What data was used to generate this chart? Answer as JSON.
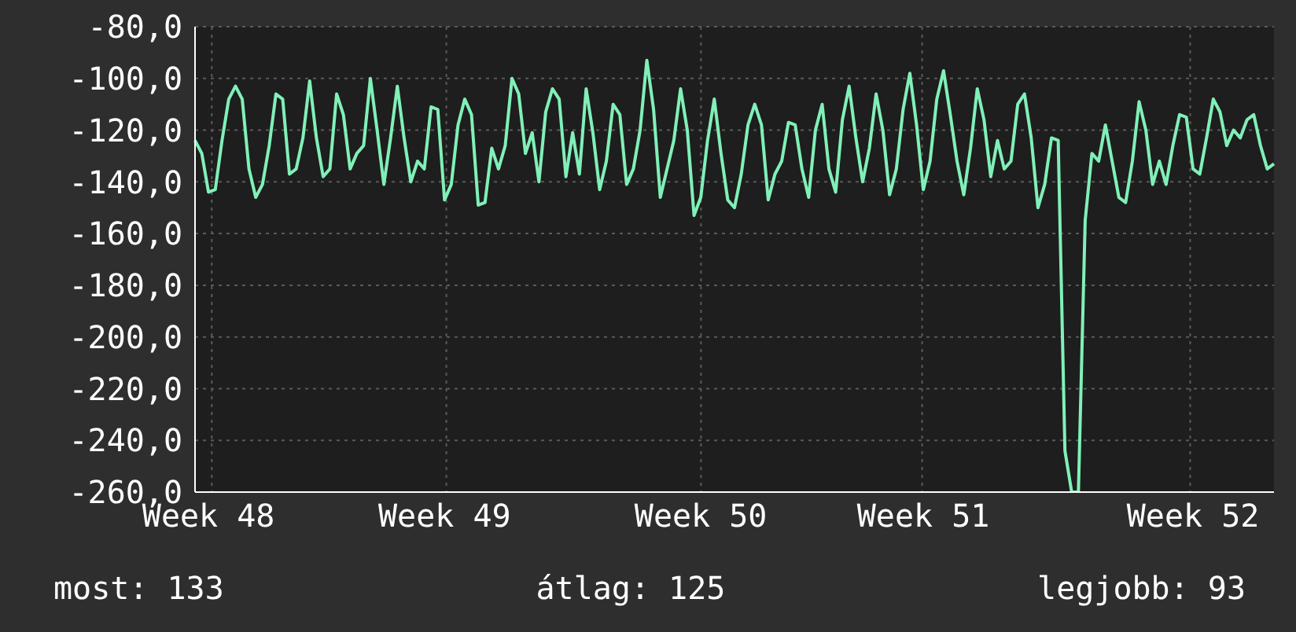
{
  "chart_data": {
    "type": "line",
    "color": "#80f0b8",
    "categories": [
      null,
      null,
      "Week 48",
      null,
      null,
      null,
      null,
      null,
      null,
      null,
      null,
      null,
      null,
      null,
      null,
      null,
      null,
      null,
      null,
      null,
      null,
      null,
      null,
      null,
      null,
      null,
      null,
      null,
      null,
      null,
      null,
      null,
      null,
      null,
      null,
      null,
      null,
      "Week 49",
      null,
      null,
      null,
      null,
      null,
      null,
      null,
      null,
      null,
      null,
      null,
      null,
      null,
      null,
      null,
      null,
      null,
      null,
      null,
      null,
      null,
      null,
      null,
      null,
      null,
      null,
      null,
      null,
      null,
      null,
      null,
      null,
      null,
      null,
      null,
      null,
      null,
      "Week 50",
      null,
      null,
      null,
      null,
      null,
      null,
      null,
      null,
      null,
      null,
      null,
      null,
      null,
      null,
      null,
      null,
      null,
      null,
      null,
      null,
      null,
      null,
      null,
      null,
      null,
      null,
      null,
      null,
      null,
      null,
      null,
      null,
      "Week 51",
      null,
      null,
      null,
      null,
      null,
      null,
      null,
      null,
      null,
      null,
      null,
      null,
      null,
      null,
      null,
      null,
      null,
      null,
      null,
      null,
      null,
      null,
      null,
      null,
      null,
      null,
      null,
      null,
      null,
      null,
      null,
      null,
      null,
      null,
      null,
      null,
      null,
      null,
      null,
      "Week 52",
      null,
      null,
      null,
      null,
      null,
      null,
      null,
      null,
      null,
      null,
      null,
      null
    ],
    "values": [
      -124,
      -129,
      -144,
      -143,
      -124,
      -108,
      -103,
      -108,
      -135,
      -146,
      -141,
      -126,
      -106,
      -108,
      -137,
      -135,
      -123,
      -101,
      -123,
      -138,
      -135,
      -106,
      -114,
      -135,
      -129,
      -126,
      -100,
      -120,
      -141,
      -123,
      -103,
      -123,
      -140,
      -132,
      -135,
      -111,
      -112,
      -147,
      -141,
      -118,
      -108,
      -114,
      -149,
      -148,
      -127,
      -135,
      -126,
      -100,
      -106,
      -129,
      -121,
      -140,
      -113,
      -104,
      -108,
      -138,
      -121,
      -137,
      -104,
      -121,
      -143,
      -132,
      -110,
      -114,
      -141,
      -135,
      -120,
      -93,
      -112,
      -146,
      -135,
      -124,
      -104,
      -120,
      -153,
      -146,
      -124,
      -108,
      -129,
      -147,
      -150,
      -137,
      -118,
      -110,
      -118,
      -147,
      -137,
      -132,
      -117,
      -118,
      -135,
      -146,
      -120,
      -110,
      -135,
      -144,
      -116,
      -103,
      -123,
      -140,
      -127,
      -106,
      -120,
      -145,
      -135,
      -112,
      -98,
      -118,
      -143,
      -132,
      -108,
      -97,
      -114,
      -132,
      -145,
      -127,
      -104,
      -116,
      -138,
      -124,
      -135,
      -132,
      -110,
      -106,
      -123,
      -150,
      -141,
      -123,
      -124,
      -244,
      -260,
      -260,
      -155,
      -129,
      -132,
      -118,
      -132,
      -146,
      -148,
      -132,
      -109,
      -120,
      -141,
      -132,
      -141,
      -126,
      -114,
      -115,
      -135,
      -137,
      -123,
      -108,
      -113,
      -126,
      -120,
      -123,
      -116,
      -114,
      -126,
      -135,
      -133
    ],
    "ylim": [
      -260,
      -80
    ],
    "yticks": [
      {
        "value": -260,
        "label": "-260,0"
      },
      {
        "value": -240,
        "label": "-240,0"
      },
      {
        "value": -220,
        "label": "-220,0"
      },
      {
        "value": -200,
        "label": "-200,0"
      },
      {
        "value": -180,
        "label": "-180,0"
      },
      {
        "value": -160,
        "label": "-160,0"
      },
      {
        "value": -140,
        "label": "-140,0"
      },
      {
        "value": -120,
        "label": "-120,0"
      },
      {
        "value": -100,
        "label": "-100,0"
      },
      {
        "value": -80,
        "label": "-80,0"
      }
    ],
    "grid": true,
    "annotations": [
      "most: 133",
      "átlag: 125",
      "legjobb: 93"
    ]
  }
}
